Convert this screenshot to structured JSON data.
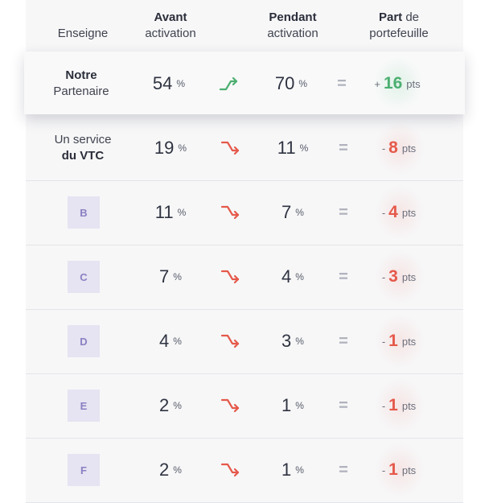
{
  "header": {
    "enseigne": "Enseigne",
    "avant_bold": "Avant",
    "avant_rest": "activation",
    "pendant_bold": "Pendant",
    "pendant_rest": "activation",
    "part_bold": "Part",
    "part_rest1": " de",
    "part_rest2": "portefeuille"
  },
  "colors": {
    "up": "#4caf70",
    "down": "#e5594a",
    "logo_bg": "#e6e3f2",
    "logo_text": "#8a80c2"
  },
  "rows": [
    {
      "brand_line1": "Notre",
      "brand_line2": "Partenaire",
      "avant": "54",
      "pendant": "70",
      "unit": "%",
      "eq": "=",
      "sign": "+",
      "delta": "16",
      "pts": "pts",
      "trend": "up"
    },
    {
      "brand_line1": "Un service",
      "brand_line2": "du VTC",
      "avant": "19",
      "pendant": "11",
      "unit": "%",
      "eq": "=",
      "sign": "-",
      "delta": "8",
      "pts": "pts",
      "trend": "down"
    },
    {
      "logo": "B",
      "avant": "11",
      "pendant": "7",
      "unit": "%",
      "eq": "=",
      "sign": "-",
      "delta": "4",
      "pts": "pts",
      "trend": "down"
    },
    {
      "logo": "C",
      "avant": "7",
      "pendant": "4",
      "unit": "%",
      "eq": "=",
      "sign": "-",
      "delta": "3",
      "pts": "pts",
      "trend": "down"
    },
    {
      "logo": "D",
      "avant": "4",
      "pendant": "3",
      "unit": "%",
      "eq": "=",
      "sign": "-",
      "delta": "1",
      "pts": "pts",
      "trend": "down"
    },
    {
      "logo": "E",
      "avant": "2",
      "pendant": "1",
      "unit": "%",
      "eq": "=",
      "sign": "-",
      "delta": "1",
      "pts": "pts",
      "trend": "down"
    },
    {
      "logo": "F",
      "avant": "2",
      "pendant": "1",
      "unit": "%",
      "eq": "=",
      "sign": "-",
      "delta": "1",
      "pts": "pts",
      "trend": "down"
    }
  ]
}
